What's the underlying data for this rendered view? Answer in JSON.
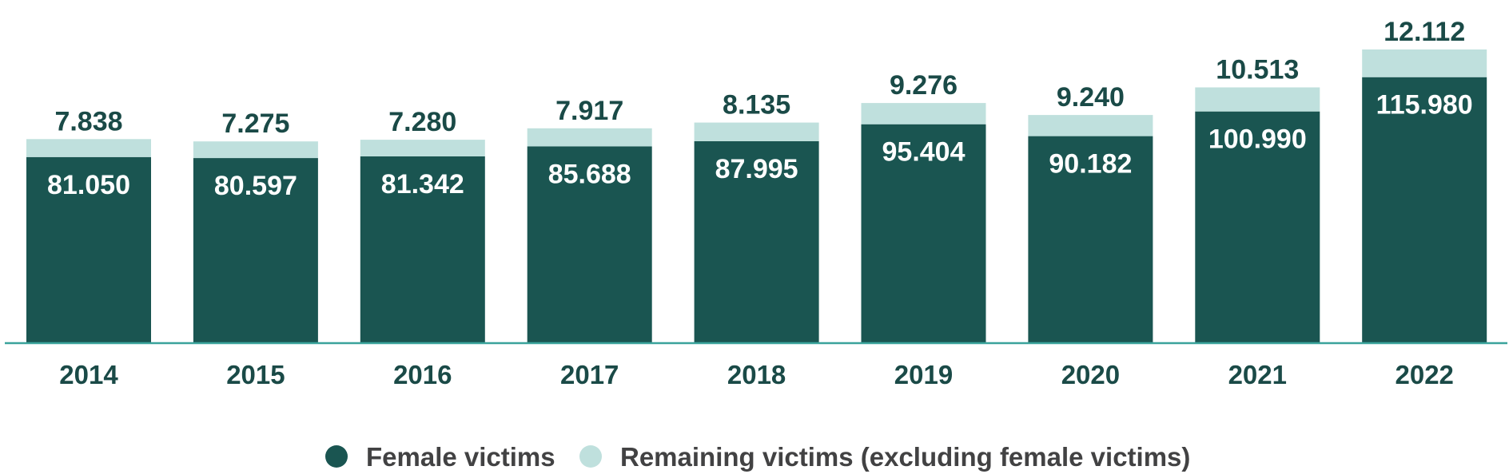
{
  "chart_data": {
    "type": "bar",
    "stacked": true,
    "categories": [
      "2014",
      "2015",
      "2016",
      "2017",
      "2018",
      "2019",
      "2020",
      "2021",
      "2022"
    ],
    "series": [
      {
        "name": "Female victims",
        "values": [
          81050,
          80597,
          81342,
          85688,
          87995,
          95404,
          90182,
          100990,
          115980
        ],
        "labels": [
          "81.050",
          "80.597",
          "81.342",
          "85.688",
          "87.995",
          "95.404",
          "90.182",
          "100.990",
          "115.980"
        ],
        "color": "#1a5551"
      },
      {
        "name": "Remaining victims (excluding female victims)",
        "values": [
          7838,
          7275,
          7280,
          7917,
          8135,
          9276,
          9240,
          10513,
          12112
        ],
        "labels": [
          "7.838",
          "7.275",
          "7.280",
          "7.917",
          "8.135",
          "9.276",
          "9.240",
          "10.513",
          "12.112"
        ],
        "color": "#bfe0dd"
      }
    ],
    "title": "",
    "xlabel": "",
    "ylabel": "",
    "ylim": [
      0,
      128092
    ],
    "grid": false,
    "legend_position": "bottom-center",
    "colors": {
      "axis": "#3aa39b",
      "tick_text": "#1a4a47",
      "bar_label_inside": "#ffffff",
      "bar_label_above": "#1a4a47",
      "legend_text": "#424243"
    }
  }
}
